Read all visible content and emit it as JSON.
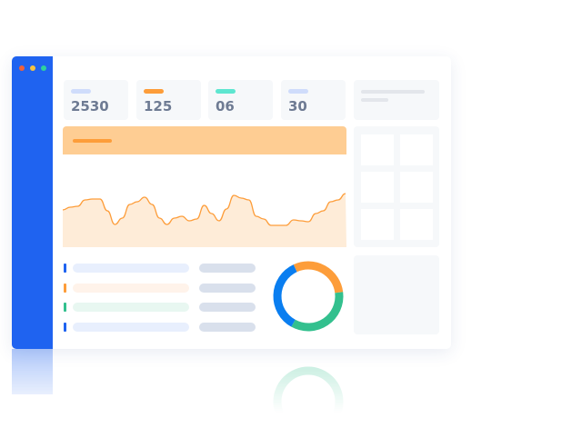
{
  "window_controls": {
    "colors": [
      "#f0613a",
      "#f6c343",
      "#2ed19c"
    ]
  },
  "sidebar": {
    "color": "#1f63f0"
  },
  "stats": [
    {
      "value": "2530",
      "accent": "#cfdcfb"
    },
    {
      "value": "125",
      "accent": "#fd9d3a"
    },
    {
      "value": "06",
      "accent": "#5ee6d0"
    },
    {
      "value": "30",
      "accent": "#cfdcfb"
    }
  ],
  "chart_data": {
    "type": "area",
    "values": [
      41,
      44,
      45,
      52,
      53,
      53,
      40,
      25,
      32,
      47,
      50,
      55,
      47,
      32,
      25,
      32,
      34,
      29,
      31,
      46,
      37,
      29,
      42,
      57,
      54,
      52,
      34,
      31,
      24,
      24,
      24,
      30,
      29,
      28,
      37,
      40,
      50,
      52,
      59
    ],
    "line_color": "#fd9d3a",
    "fill_color": "#feecd8",
    "header_color": "#fecd93"
  },
  "list_rows": [
    {
      "marker": "#1f63f0",
      "bar": "#e8effd"
    },
    {
      "marker": "#fd9d3a",
      "bar": "#fff3ea"
    },
    {
      "marker": "#33c08e",
      "bar": "#e8f7f1"
    },
    {
      "marker": "#1f63f0",
      "bar": "#e8effd"
    }
  ],
  "donut": {
    "segments": [
      {
        "color": "#fd9d3a",
        "value": 30
      },
      {
        "color": "#33c08e",
        "value": 35
      },
      {
        "color": "#0a7ef0",
        "value": 35
      }
    ]
  }
}
